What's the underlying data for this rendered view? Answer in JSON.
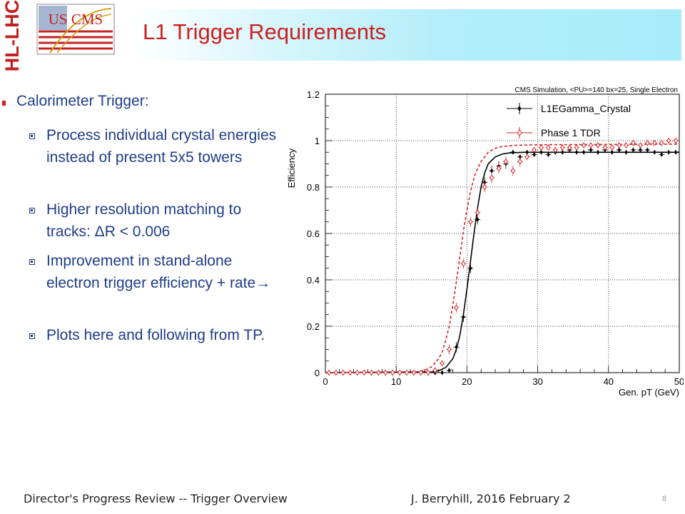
{
  "slide": {
    "title": "L1 Trigger Requirements",
    "logo_left_text": "HL-LHC",
    "logo_right_text": "US CMS"
  },
  "bullets": {
    "main": "Calorimeter Trigger:",
    "items": [
      "Process individual crystal energies instead of present 5x5 towers",
      "Higher resolution matching to tracks: ΔR < 0.006",
      "Improvement in stand-alone electron trigger efficiency + rate→",
      "Plots here and following from TP."
    ]
  },
  "footer": {
    "left": "Director's Progress Review -- Trigger Overview",
    "center": "J. Berryhill, 2016 February 2",
    "page": "8"
  },
  "colors": {
    "title_red": "#cc1f1f",
    "bullet_blue": "#1f3c88",
    "series_black": "#000000",
    "series_red": "#d62020"
  },
  "chart_data": {
    "type": "scatter",
    "title": "CMS Simulation, <PU>=140 bx=25, Single Electron",
    "xlabel": "Gen. pT (GeV)",
    "ylabel": "Efficiency",
    "xlim": [
      0,
      50
    ],
    "ylim": [
      0,
      1.2
    ],
    "xticks": [
      0,
      10,
      20,
      30,
      40,
      50
    ],
    "yticks": [
      0,
      0.2,
      0.4,
      0.6,
      0.8,
      1,
      1.2
    ],
    "legend_position": "top-right",
    "series": [
      {
        "name": "L1EGamma_Crystal",
        "color": "#000000",
        "marker": "filled",
        "x": [
          0.5,
          1.5,
          2.5,
          3.5,
          4.5,
          5.5,
          6.5,
          7.5,
          8.5,
          9.5,
          10.5,
          11.5,
          12.5,
          13.5,
          14.5,
          15.5,
          16.5,
          17.5,
          18.5,
          19.5,
          20.5,
          21.5,
          22.5,
          23.5,
          24.5,
          25.5,
          26.5,
          27.5,
          28.5,
          29.5,
          30.5,
          31.5,
          32.5,
          33.5,
          34.5,
          35.5,
          36.5,
          37.5,
          38.5,
          39.5,
          40.5,
          41.5,
          42.5,
          43.5,
          44.5,
          45.5,
          46.5,
          47.5,
          48.5,
          49.5
        ],
        "y": [
          0,
          0,
          0,
          0,
          0,
          0,
          0,
          0,
          0,
          0,
          0,
          0,
          0,
          0,
          0,
          0,
          0,
          0.01,
          0.11,
          0.24,
          0.45,
          0.66,
          0.82,
          0.87,
          0.89,
          0.9,
          0.95,
          0.93,
          0.95,
          0.94,
          0.95,
          0.94,
          0.95,
          0.95,
          0.96,
          0.95,
          0.95,
          0.96,
          0.95,
          0.96,
          0.95,
          0.96,
          0.95,
          0.96,
          0.96,
          0.96,
          0.95,
          0.94,
          0.95,
          0.95
        ],
        "fit_x": [
          0,
          15,
          16,
          17,
          18,
          18.5,
          19,
          19.5,
          20,
          20.5,
          21,
          21.5,
          22,
          22.5,
          23,
          24,
          25,
          26,
          28,
          30,
          50
        ],
        "fit_y": [
          0,
          0.003,
          0.008,
          0.022,
          0.06,
          0.1,
          0.16,
          0.25,
          0.36,
          0.48,
          0.6,
          0.71,
          0.8,
          0.86,
          0.9,
          0.93,
          0.942,
          0.947,
          0.95,
          0.95,
          0.95
        ]
      },
      {
        "name": "Phase 1 TDR",
        "color": "#d62020",
        "marker": "open",
        "x": [
          0.5,
          1.5,
          2.5,
          3.5,
          4.5,
          5.5,
          6.5,
          7.5,
          8.5,
          9.5,
          10.5,
          11.5,
          12.5,
          13.5,
          14.5,
          15.5,
          16.5,
          17.5,
          18.5,
          19.5,
          20.5,
          21.5,
          22.5,
          23.5,
          24.5,
          25.5,
          26.5,
          27.5,
          28.5,
          29.5,
          30.5,
          31.5,
          32.5,
          33.5,
          34.5,
          35.5,
          36.5,
          37.5,
          38.5,
          39.5,
          40.5,
          41.5,
          42.5,
          43.5,
          44.5,
          45.5,
          46.5,
          47.5,
          48.5,
          49.5
        ],
        "y": [
          0,
          0,
          0,
          0,
          0,
          0,
          0,
          0,
          0,
          0,
          0,
          0,
          0,
          0,
          0,
          0.01,
          0.04,
          0.1,
          0.28,
          0.47,
          0.65,
          0.69,
          0.8,
          0.84,
          0.88,
          0.91,
          0.87,
          0.91,
          0.93,
          0.96,
          0.97,
          0.97,
          0.96,
          0.97,
          0.97,
          0.97,
          0.98,
          0.98,
          0.98,
          0.97,
          0.97,
          0.98,
          0.98,
          0.99,
          0.98,
          0.99,
          0.99,
          0.99,
          1.0,
          1.0
        ],
        "fit_x": [
          0,
          13,
          14,
          15,
          16,
          16.5,
          17,
          17.5,
          18,
          18.5,
          19,
          19.5,
          20,
          20.5,
          21,
          21.5,
          22,
          23,
          24,
          25,
          27,
          30,
          50
        ],
        "fit_y": [
          0,
          0.004,
          0.01,
          0.025,
          0.06,
          0.09,
          0.14,
          0.2,
          0.29,
          0.39,
          0.5,
          0.61,
          0.7,
          0.78,
          0.84,
          0.88,
          0.91,
          0.95,
          0.967,
          0.975,
          0.98,
          0.982,
          0.985
        ]
      }
    ]
  }
}
